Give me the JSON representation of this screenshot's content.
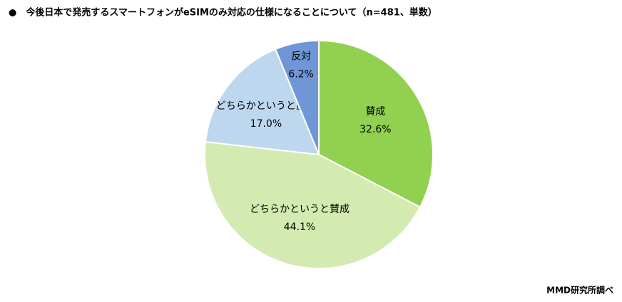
{
  "chart_data": {
    "type": "pie",
    "title": "●　今後日本で発売するスマートフォンがeSIMのみ対応の仕様になることについて（n=481、単数）",
    "source": "MMD研究所調べ",
    "categories": [
      "賛成",
      "どちらかというと賛成",
      "どちらかというと反対",
      "反対"
    ],
    "values": [
      32.6,
      44.1,
      17.0,
      6.2
    ],
    "value_labels": [
      "32.6%",
      "44.1%",
      "17.0%",
      "6.2%"
    ],
    "colors": [
      "#92d050",
      "#d3ebb1",
      "#bdd7ee",
      "#6f96d6"
    ]
  }
}
